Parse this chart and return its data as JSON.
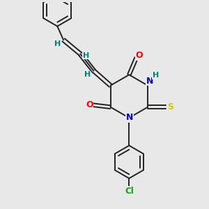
{
  "background_color": "#e8e8e8",
  "bond_color": "#222222",
  "atom_colors": {
    "O": "#ff0000",
    "N": "#0000cc",
    "S": "#cccc00",
    "Cl": "#00aa00",
    "H": "#008080",
    "C": "#222222"
  },
  "figsize": [
    3.0,
    3.0
  ],
  "dpi": 100
}
